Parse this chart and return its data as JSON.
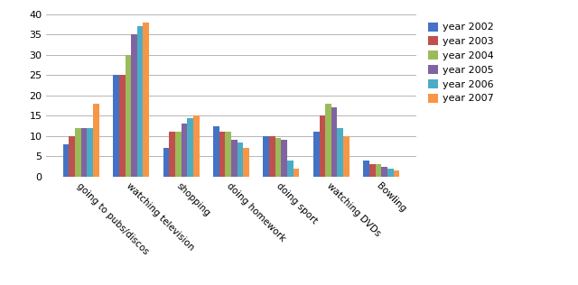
{
  "categories": [
    "going to pubs/discos",
    "watching television",
    "shopping",
    "doing homework",
    "doing sport",
    "watching DVDs",
    "Bowling"
  ],
  "series": {
    "year 2002": [
      8,
      25,
      7,
      12.5,
      10,
      11,
      4
    ],
    "year 2003": [
      10,
      25,
      11,
      11,
      10,
      15,
      3
    ],
    "year 2004": [
      12,
      30,
      11,
      11,
      9.5,
      18,
      3
    ],
    "year 2005": [
      12,
      35,
      13,
      9,
      9,
      17,
      2.5
    ],
    "year 2006": [
      12,
      37,
      14.5,
      8.5,
      4,
      12,
      2
    ],
    "year 2007": [
      18,
      38,
      15,
      7,
      2,
      10,
      1.5
    ]
  },
  "colors": {
    "year 2002": "#4472C4",
    "year 2003": "#C0504D",
    "year 2004": "#9BBB59",
    "year 2005": "#8064A2",
    "year 2006": "#4BACC6",
    "year 2007": "#F79646"
  },
  "ylim": [
    0,
    40
  ],
  "yticks": [
    0,
    5,
    10,
    15,
    20,
    25,
    30,
    35,
    40
  ],
  "background_color": "#FFFFFF",
  "legend_order": [
    "year 2002",
    "year 2003",
    "year 2004",
    "year 2005",
    "year 2006",
    "year 2007"
  ],
  "bar_width": 0.12,
  "figsize": [
    6.4,
    3.16
  ]
}
